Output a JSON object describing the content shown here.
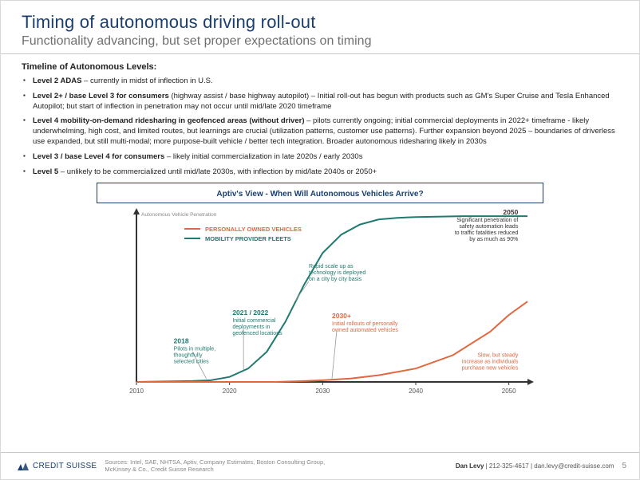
{
  "header": {
    "title": "Timing of autonomous driving roll-out",
    "subtitle": "Functionality advancing, but set proper expectations on timing"
  },
  "timeline": {
    "heading": "Timeline of Autonomous Levels:",
    "items": [
      {
        "bold": "Level 2 ADAS",
        "text": " – currently in midst of inflection in U.S."
      },
      {
        "bold": "Level 2+ / base Level 3 for consumers",
        "text": " (highway assist / base highway autopilot) – Initial roll-out has begun with products such as GM's Super Cruise and Tesla Enhanced Autopilot; but start of inflection in penetration may not occur until mid/late 2020 timeframe"
      },
      {
        "bold": "Level 4 mobility-on-demand ridesharing in geofenced areas (without driver)",
        "text": " – pilots currently ongoing; initial commercial deployments in 2022+ timeframe - likely underwhelming, high cost, and limited routes, but learnings are crucial (utilization patterns, customer use patterns). Further expansion beyond 2025 – boundaries of driverless use expanded, but still multi-modal; more purpose-built vehicle / better tech integration. Broader autonomous ridesharing likely in 2030s"
      },
      {
        "bold": "Level 3 / base Level 4 for consumers",
        "text": " – likely initial commercialization in late 2020s / early 2030s"
      },
      {
        "bold": "Level 5",
        "text": " – unlikely to be commercialized until mid/late 2030s, with inflection by mid/late 2040s or 2050+"
      }
    ]
  },
  "chart": {
    "title": "Aptiv's View - When Will Autonomous Vehicles Arrive?",
    "y_label": "Autonomous Vehicle Penetration",
    "legend": {
      "series1": {
        "label": "PERSONALLY OWNED VEHICLES",
        "color": "#e06740"
      },
      "series2": {
        "label": "MOBILITY PROVIDER FLEETS",
        "color": "#1f7a6f"
      }
    },
    "x_ticks": [
      "2010",
      "2020",
      "2030",
      "2040",
      "2050"
    ],
    "x_range": [
      2010,
      2052
    ],
    "y_range": [
      0,
      100
    ],
    "series2_points": [
      [
        2010,
        0
      ],
      [
        2016,
        0.5
      ],
      [
        2018,
        1
      ],
      [
        2020,
        3
      ],
      [
        2022,
        8
      ],
      [
        2024,
        18
      ],
      [
        2026,
        36
      ],
      [
        2028,
        58
      ],
      [
        2030,
        77
      ],
      [
        2032,
        88
      ],
      [
        2034,
        94
      ],
      [
        2036,
        97
      ],
      [
        2038,
        98
      ],
      [
        2040,
        98.5
      ],
      [
        2045,
        99
      ],
      [
        2050,
        99
      ],
      [
        2052,
        99
      ]
    ],
    "series1_points": [
      [
        2010,
        0
      ],
      [
        2025,
        0
      ],
      [
        2028,
        0.5
      ],
      [
        2030,
        1
      ],
      [
        2033,
        2
      ],
      [
        2036,
        4
      ],
      [
        2040,
        8
      ],
      [
        2044,
        16
      ],
      [
        2048,
        30
      ],
      [
        2050,
        40
      ],
      [
        2052,
        48
      ]
    ],
    "annotations": {
      "a2018": {
        "title": "2018",
        "lines": [
          "Pilots in multiple,",
          "thoughtfully",
          "selected cities"
        ],
        "color": "#1f7a6f"
      },
      "a2021": {
        "title": "2021 / 2022",
        "lines": [
          "Initial commercial",
          "deployments in",
          "geofenced locations"
        ],
        "color": "#1f7a6f"
      },
      "aRapid": {
        "lines": [
          "Rapid scale up as",
          "technology is deployed",
          "on a city by city basis"
        ],
        "color": "#1f7a6f"
      },
      "a2030": {
        "title": "2030+",
        "lines": [
          "Initial rollouts of personally",
          "owned automated vehicles"
        ],
        "color": "#e06740"
      },
      "aSlow": {
        "lines": [
          "Slow, but steady",
          "increase as individuals",
          "purchase new vehicles"
        ],
        "color": "#e06740"
      },
      "a2050": {
        "title": "2050",
        "lines": [
          "Significant penetration of",
          "safety automation leads",
          "to traffic fatalities reduced",
          "by as much as 90%"
        ],
        "color": "#333333"
      }
    },
    "axis_color": "#333333",
    "background": "#ffffff"
  },
  "footer": {
    "logo": "CREDIT SUISSE",
    "sources": "Sources: Intel, SAE, NHTSA, Aptiv, Company Estimates, Boston Consulting Group,\nMcKinsey & Co., Credit Suisse Research",
    "contact_name": "Dan Levy",
    "contact_rest": " | 212-325-4617 | dan.levy@credit-suisse.com",
    "page": "5"
  }
}
